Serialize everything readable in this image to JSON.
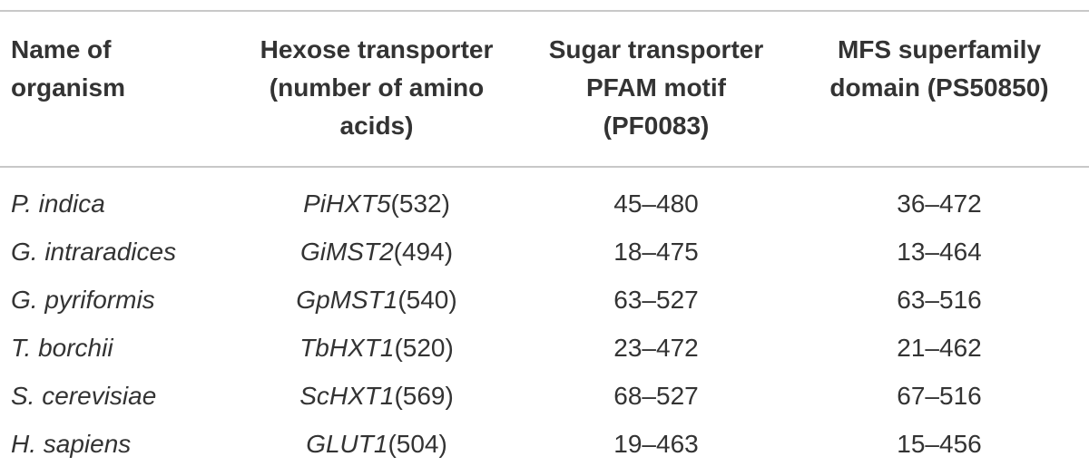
{
  "table": {
    "header": [
      [
        "Name of",
        "organism"
      ],
      [
        "Hexose transporter",
        "(number of amino",
        "acids)"
      ],
      [
        "Sugar transporter",
        "PFAM motif",
        "(PF0083)"
      ],
      [
        "MFS superfamily",
        "domain (PS50850)"
      ]
    ],
    "rows": [
      [
        "P. indica",
        {
          "gene": "PiHXT5",
          "length": "(532)"
        },
        "45–480",
        "36–472"
      ],
      [
        "G. intraradices",
        {
          "gene": "GiMST2",
          "length": "(494)"
        },
        "18–475",
        "13–464"
      ],
      [
        "G. pyriformis",
        {
          "gene": "GpMST1",
          "length": "(540)"
        },
        "63–527",
        "63–516"
      ],
      [
        "T. borchii",
        {
          "gene": "TbHXT1",
          "length": "(520)"
        },
        "23–472",
        "21–462"
      ],
      [
        "S. cerevisiae",
        {
          "gene": "ScHXT1",
          "length": "(569)"
        },
        "68–527",
        "67–516"
      ],
      [
        "H. sapiens",
        {
          "gene": "GLUT1",
          "length": "(504)"
        },
        "19–463",
        "15–456"
      ]
    ]
  }
}
